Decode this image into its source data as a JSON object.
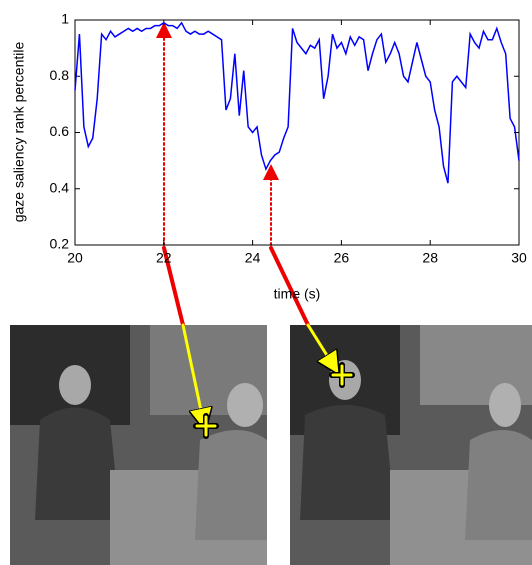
{
  "chart_data": {
    "type": "line",
    "xlabel": "time (s)",
    "ylabel": "gaze saliency rank percentile",
    "xlim": [
      20,
      30
    ],
    "ylim": [
      0.2,
      1
    ],
    "xticks": [
      20,
      22,
      24,
      26,
      28,
      30
    ],
    "yticks": [
      0.2,
      0.4,
      0.6,
      0.8,
      1
    ],
    "grid": false,
    "x": [
      20.0,
      20.1,
      20.2,
      20.3,
      20.4,
      20.5,
      20.6,
      20.7,
      20.8,
      20.9,
      21.0,
      21.1,
      21.2,
      21.3,
      21.4,
      21.5,
      21.6,
      21.7,
      21.8,
      21.9,
      22.0,
      22.1,
      22.2,
      22.3,
      22.4,
      22.5,
      22.6,
      22.7,
      22.8,
      22.9,
      23.0,
      23.1,
      23.2,
      23.3,
      23.4,
      23.5,
      23.6,
      23.7,
      23.8,
      23.9,
      24.0,
      24.1,
      24.2,
      24.3,
      24.4,
      24.5,
      24.6,
      24.7,
      24.8,
      24.9,
      25.0,
      25.1,
      25.2,
      25.3,
      25.4,
      25.5,
      25.6,
      25.7,
      25.8,
      25.9,
      26.0,
      26.1,
      26.2,
      26.3,
      26.4,
      26.5,
      26.6,
      26.7,
      26.8,
      26.9,
      27.0,
      27.1,
      27.2,
      27.3,
      27.4,
      27.5,
      27.6,
      27.7,
      27.8,
      27.9,
      28.0,
      28.1,
      28.2,
      28.3,
      28.4,
      28.5,
      28.6,
      28.7,
      28.8,
      28.9,
      29.0,
      29.1,
      29.2,
      29.3,
      29.4,
      29.5,
      29.6,
      29.7,
      29.8,
      29.9,
      30.0
    ],
    "series": [
      {
        "color": "#0000ff",
        "values": [
          0.75,
          0.95,
          0.62,
          0.55,
          0.58,
          0.72,
          0.95,
          0.93,
          0.96,
          0.94,
          0.95,
          0.96,
          0.97,
          0.96,
          0.97,
          0.96,
          0.97,
          0.97,
          0.98,
          0.98,
          0.99,
          0.98,
          0.98,
          0.97,
          0.99,
          0.96,
          0.95,
          0.96,
          0.95,
          0.95,
          0.96,
          0.95,
          0.94,
          0.93,
          0.68,
          0.72,
          0.88,
          0.66,
          0.82,
          0.62,
          0.6,
          0.62,
          0.52,
          0.47,
          0.5,
          0.52,
          0.53,
          0.58,
          0.62,
          0.97,
          0.92,
          0.9,
          0.88,
          0.91,
          0.9,
          0.93,
          0.72,
          0.8,
          0.95,
          0.9,
          0.92,
          0.88,
          0.94,
          0.91,
          0.94,
          0.93,
          0.82,
          0.88,
          0.93,
          0.95,
          0.85,
          0.88,
          0.92,
          0.88,
          0.8,
          0.78,
          0.85,
          0.92,
          0.86,
          0.8,
          0.78,
          0.68,
          0.62,
          0.48,
          0.42,
          0.78,
          0.8,
          0.78,
          0.76,
          0.95,
          0.92,
          0.9,
          0.96,
          0.93,
          0.93,
          0.97,
          0.92,
          0.88,
          0.65,
          0.62,
          0.5
        ]
      }
    ]
  }
}
